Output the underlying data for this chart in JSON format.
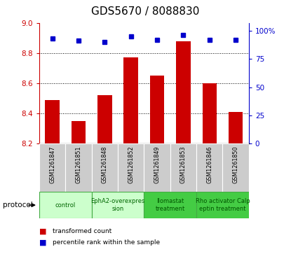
{
  "title": "GDS5670 / 8088830",
  "samples": [
    "GSM1261847",
    "GSM1261851",
    "GSM1261848",
    "GSM1261852",
    "GSM1261849",
    "GSM1261853",
    "GSM1261846",
    "GSM1261850"
  ],
  "bar_values": [
    8.49,
    8.35,
    8.52,
    8.77,
    8.65,
    8.88,
    8.6,
    8.41
  ],
  "percentile_values": [
    93,
    91,
    90,
    95,
    92,
    96,
    92,
    92
  ],
  "ymin": 8.2,
  "ymax": 9.0,
  "yticks": [
    8.2,
    8.4,
    8.6,
    8.8,
    9.0
  ],
  "right_yticks": [
    0,
    25,
    50,
    75,
    100
  ],
  "bar_color": "#cc0000",
  "dot_color": "#0000cc",
  "tick_label_color_left": "#cc0000",
  "tick_label_color_right": "#0000cc",
  "title_fontsize": 11,
  "bar_width": 0.55,
  "sample_bg_color": "#cccccc",
  "protocol_groups": [
    {
      "label": "control",
      "samples": [
        0,
        1
      ],
      "color": "#ccffcc",
      "text_color": "#006600"
    },
    {
      "label": "EphA2-overexpres\nsion",
      "samples": [
        2,
        3
      ],
      "color": "#ccffcc",
      "text_color": "#006600"
    },
    {
      "label": "Ilomastat\ntreatment",
      "samples": [
        4,
        5
      ],
      "color": "#44cc44",
      "text_color": "#005500"
    },
    {
      "label": "Rho activator Calp\neptin treatment",
      "samples": [
        6,
        7
      ],
      "color": "#44cc44",
      "text_color": "#005500"
    }
  ],
  "legend_bar_label": "transformed count",
  "legend_dot_label": "percentile rank within the sample"
}
